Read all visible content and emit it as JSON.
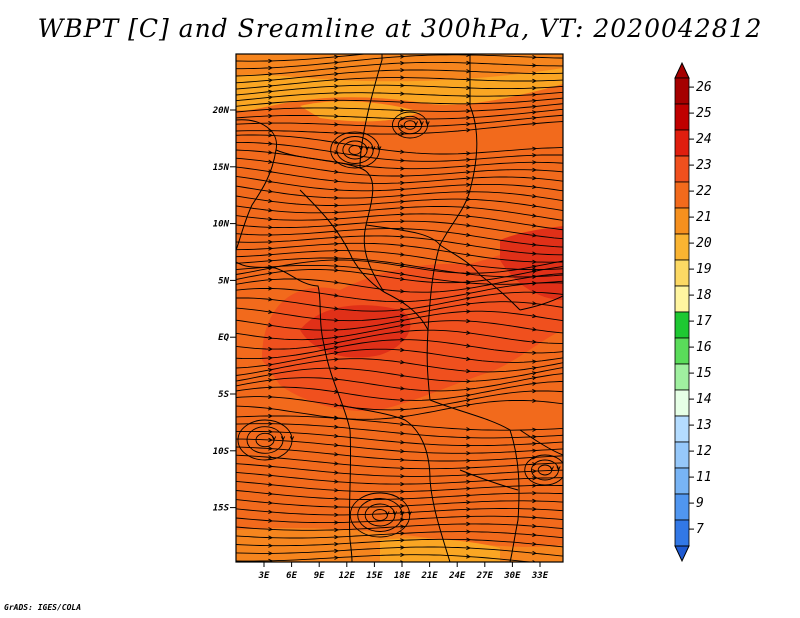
{
  "title": "WBPT [C] and Sreamline at 300hPa, VT: 2020042812",
  "footer": "GrADS: IGES/COLA",
  "map": {
    "lat_labels": [
      "20N",
      "15N",
      "10N",
      "5N",
      "EQ",
      "5S",
      "10S",
      "15S"
    ],
    "lon_labels": [
      "3E",
      "6E",
      "9E",
      "12E",
      "15E",
      "18E",
      "21E",
      "24E",
      "27E",
      "30E",
      "33E"
    ],
    "field_colors": {
      "dark_red": "#e03018",
      "red_orange": "#f0501e",
      "orange": "#f26a1c",
      "light_orange": "#f6851e",
      "yellow_orange": "#faa623"
    }
  },
  "colorbar": {
    "levels": [
      {
        "label": "26",
        "color": "#a50000"
      },
      {
        "label": "25",
        "color": "#c00000"
      },
      {
        "label": "24",
        "color": "#e01e0e"
      },
      {
        "label": "23",
        "color": "#f0501e"
      },
      {
        "label": "22",
        "color": "#f26a1c"
      },
      {
        "label": "21",
        "color": "#f6901e"
      },
      {
        "label": "20",
        "color": "#fab432"
      },
      {
        "label": "19",
        "color": "#fcd964"
      },
      {
        "label": "18",
        "color": "#fff5a0"
      },
      {
        "label": "17",
        "color": "#1ec832"
      },
      {
        "label": "16",
        "color": "#5adc5a"
      },
      {
        "label": "15",
        "color": "#a0f0a0"
      },
      {
        "label": "14",
        "color": "#e6ffe6"
      },
      {
        "label": "13",
        "color": "#b4dcff"
      },
      {
        "label": "12",
        "color": "#96c8fa"
      },
      {
        "label": "11",
        "color": "#78b4f5"
      },
      {
        "label": "9",
        "color": "#5096f0"
      },
      {
        "label": "7",
        "color": "#3278e6"
      }
    ],
    "under_color": "#1e5ad2"
  }
}
